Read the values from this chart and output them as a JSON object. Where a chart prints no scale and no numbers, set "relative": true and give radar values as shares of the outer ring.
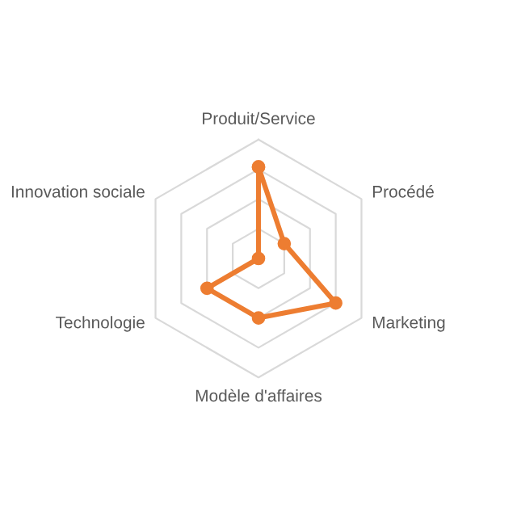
{
  "chart_data": {
    "type": "radar",
    "relative": true,
    "grid": true,
    "marker": "circle",
    "line_style": "solid",
    "categories": [
      "Produit/Service",
      "Procédé",
      "Marketing",
      "Modèle d'affaires",
      "Technologie",
      "Innovation sociale"
    ],
    "series": [
      {
        "color": "#ed7d31",
        "values": [
          0.77,
          0.25,
          0.75,
          0.5,
          0.5,
          0.0
        ]
      }
    ]
  }
}
